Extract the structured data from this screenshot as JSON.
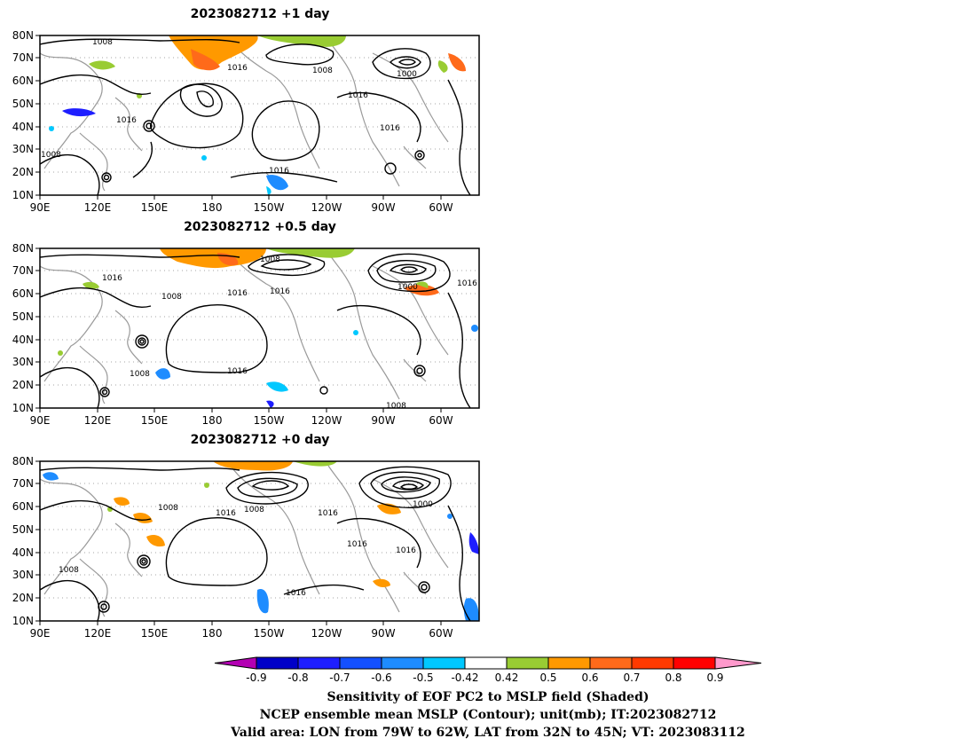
{
  "panels": [
    {
      "title": "2023082712  +1 day",
      "lat_labels": [
        "80N",
        "70N",
        "60N",
        "50N",
        "40N",
        "30N",
        "20N",
        "10N"
      ],
      "lon_labels": [
        "90E",
        "120E",
        "150E",
        "180",
        "150W",
        "120W",
        "90W",
        "60W"
      ],
      "contour_labels": [
        "1008",
        "1016",
        "1008",
        "1000",
        "1016",
        "1016",
        "1016",
        "1008",
        "1016"
      ]
    },
    {
      "title": "2023082712  +0.5 day",
      "lat_labels": [
        "80N",
        "70N",
        "60N",
        "50N",
        "40N",
        "30N",
        "20N",
        "10N"
      ],
      "lon_labels": [
        "90E",
        "120E",
        "150E",
        "180",
        "150W",
        "120W",
        "90W",
        "60W"
      ],
      "contour_labels": [
        "1008",
        "1016",
        "1008",
        "1016",
        "1016",
        "1000",
        "1016",
        "1016",
        "1008",
        "1008"
      ]
    },
    {
      "title": "2023082712  +0 day",
      "lat_labels": [
        "80N",
        "70N",
        "60N",
        "50N",
        "40N",
        "30N",
        "20N",
        "10N"
      ],
      "lon_labels": [
        "90E",
        "120E",
        "150E",
        "180",
        "150W",
        "120W",
        "90W",
        "60W"
      ],
      "contour_labels": [
        "1008",
        "1016",
        "1008",
        "1016",
        "1000",
        "1016",
        "1016",
        "1008",
        "1016"
      ]
    }
  ],
  "colorbar": {
    "labels": [
      "-0.9",
      "-0.8",
      "-0.7",
      "-0.6",
      "-0.5",
      "-0.42",
      "0.42",
      "0.5",
      "0.6",
      "0.7",
      "0.8",
      "0.9"
    ],
    "colors": [
      "#b300b3",
      "#0000c8",
      "#1e1eff",
      "#1450ff",
      "#1e8cff",
      "#00c8ff",
      "#ffffff",
      "#99cc33",
      "#ff9900",
      "#ff6a1a",
      "#ff3a00",
      "#ff0000",
      "#ff99cc"
    ]
  },
  "caption": [
    "Sensitivity of EOF PC2 to MSLP field (Shaded)",
    "NCEP ensemble mean MSLP (Contour); unit(mb); IT:2023082712",
    "Valid area: LON from 79W to 62W, LAT from 32N to 45N; VT: 2023083112"
  ]
}
